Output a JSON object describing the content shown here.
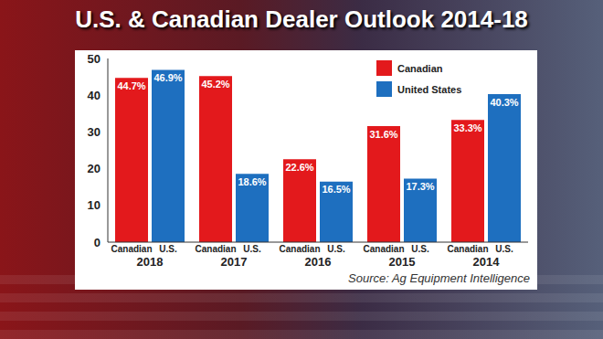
{
  "chart_data": {
    "type": "bar",
    "title": "U.S. & Canadian Dealer Outlook 2014-18",
    "source": "Source: Ag Equipment Intelligence",
    "categories": [
      "2018",
      "2017",
      "2016",
      "2015",
      "2014"
    ],
    "group_labels": [
      "Canadian",
      "U.S."
    ],
    "series": [
      {
        "name": "Canadian",
        "color": "#e3191c",
        "values": [
          44.7,
          45.2,
          22.6,
          31.6,
          33.3
        ],
        "value_labels": [
          "44.7%",
          "45.2%",
          "22.6%",
          "31.6%",
          "33.3%"
        ]
      },
      {
        "name": "United States",
        "color": "#1e6fbf",
        "values": [
          46.9,
          18.6,
          16.5,
          17.3,
          40.3
        ],
        "value_labels": [
          "46.9%",
          "18.6%",
          "16.5%",
          "17.3%",
          "40.3%"
        ]
      }
    ],
    "ylim": [
      0,
      50
    ],
    "yticks": [
      0,
      10,
      20,
      30,
      40,
      50
    ],
    "grid": false,
    "legend": "upper right",
    "data_labels": true
  }
}
